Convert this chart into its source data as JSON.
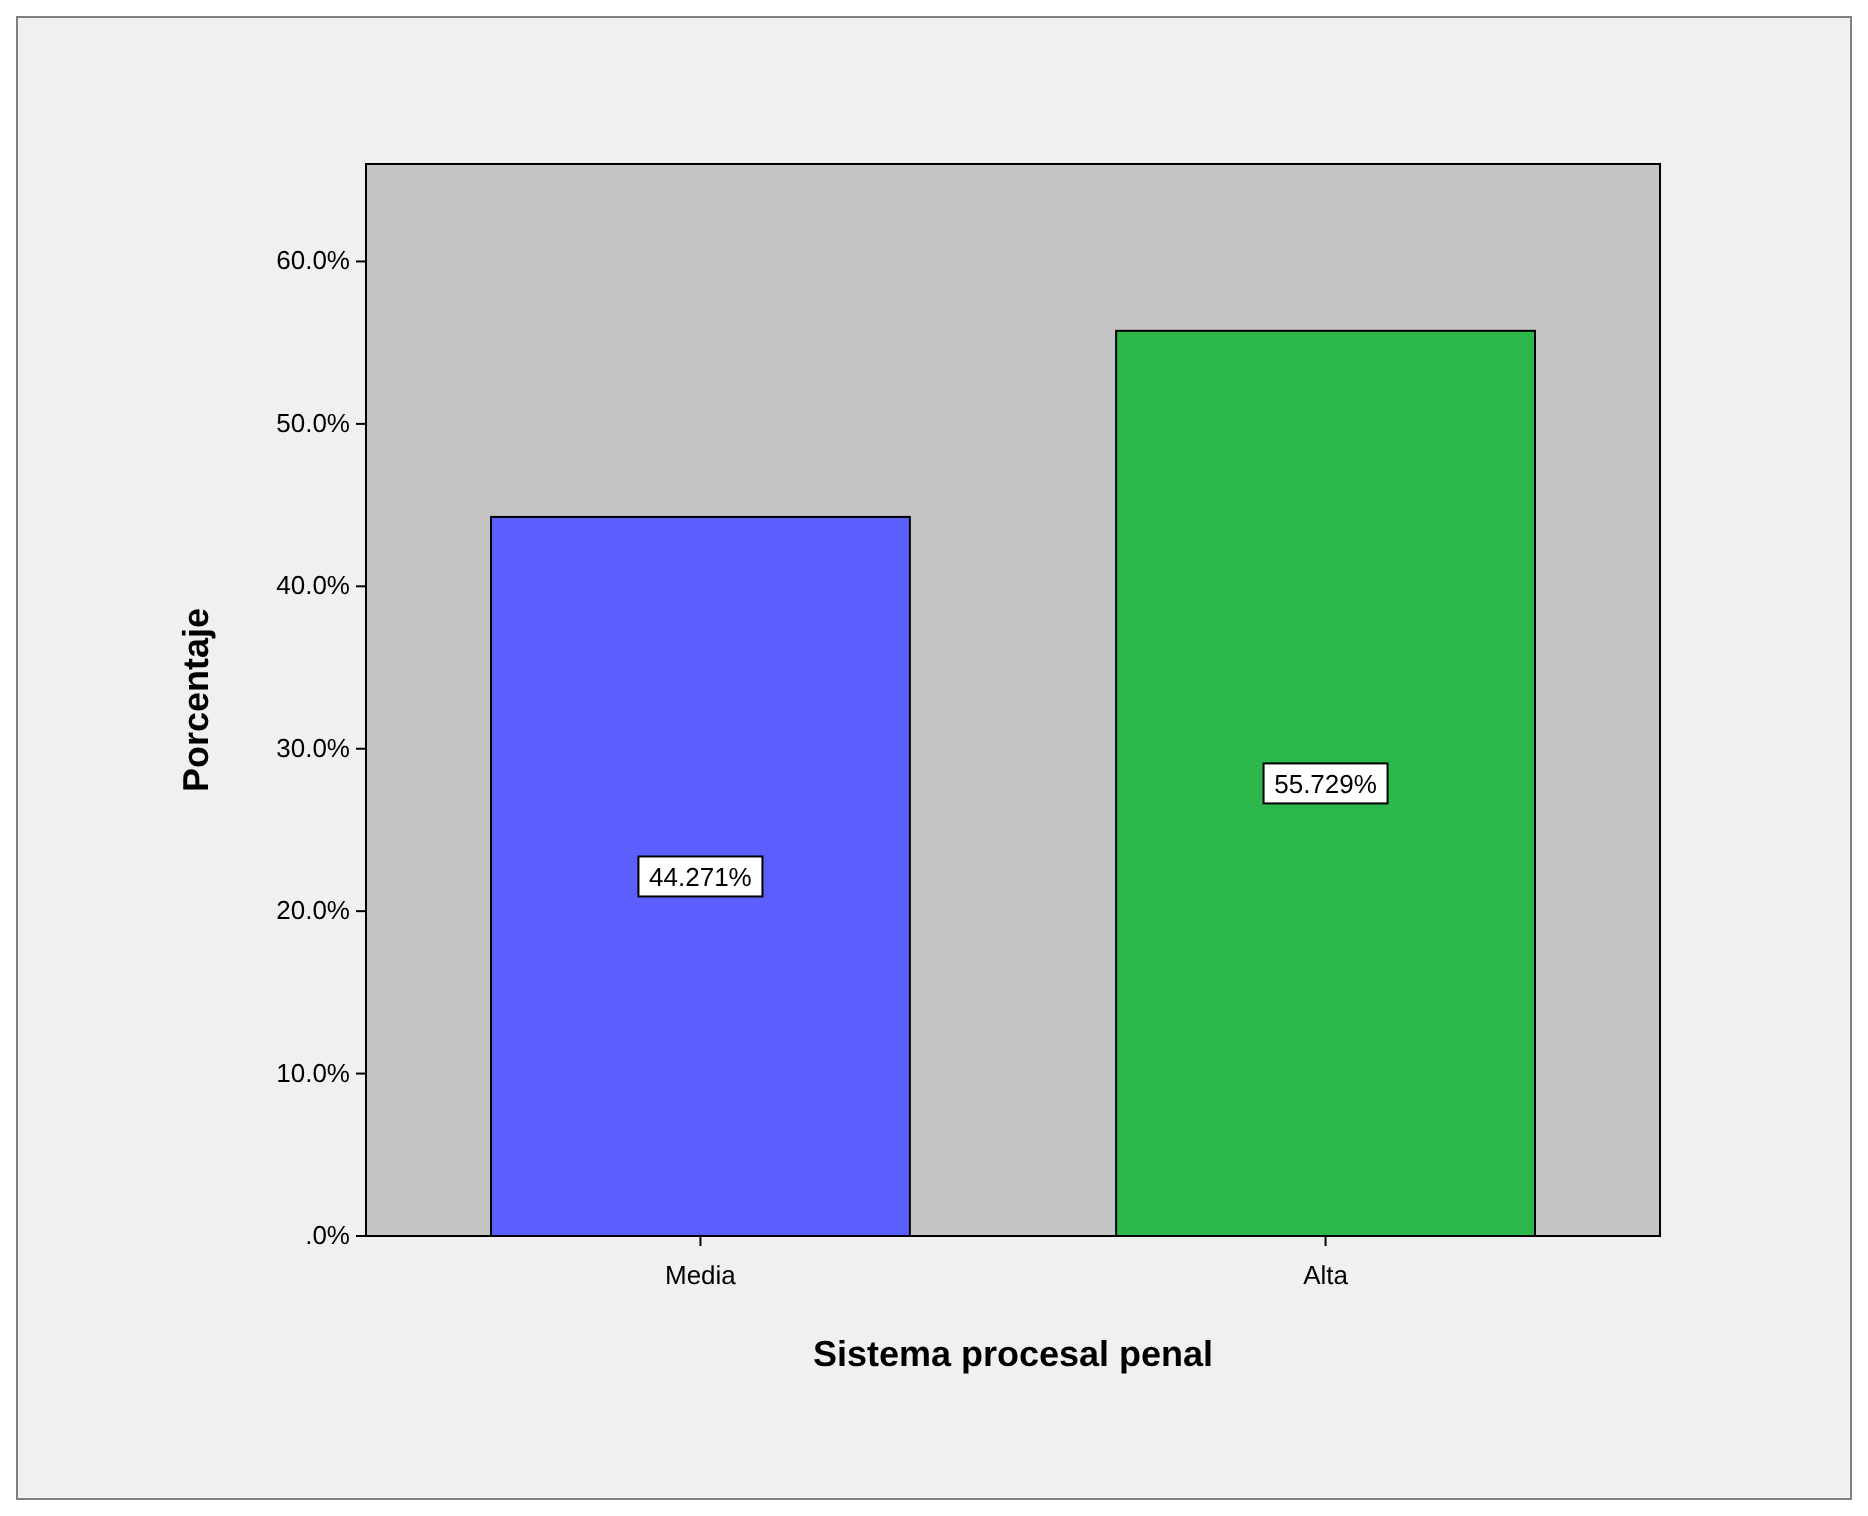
{
  "chart_data": {
    "type": "bar",
    "xlabel": "Sistema procesal penal",
    "ylabel": "Porcentaje",
    "categories": [
      "Media",
      "Alta"
    ],
    "values": [
      44.271,
      55.729
    ],
    "colors": [
      "#5a5ffe",
      "#2db84b"
    ],
    "value_labels": [
      "44.271%",
      "55.729%"
    ],
    "ylim": [
      0,
      66
    ],
    "yticks": [
      {
        "value": 0,
        "label": ".0%"
      },
      {
        "value": 10,
        "label": "10.0%"
      },
      {
        "value": 20,
        "label": "20.0%"
      },
      {
        "value": 30,
        "label": "30.0%"
      },
      {
        "value": 40,
        "label": "40.0%"
      },
      {
        "value": 50,
        "label": "50.0%"
      },
      {
        "value": 60,
        "label": "60.0%"
      }
    ],
    "grid": false
  }
}
